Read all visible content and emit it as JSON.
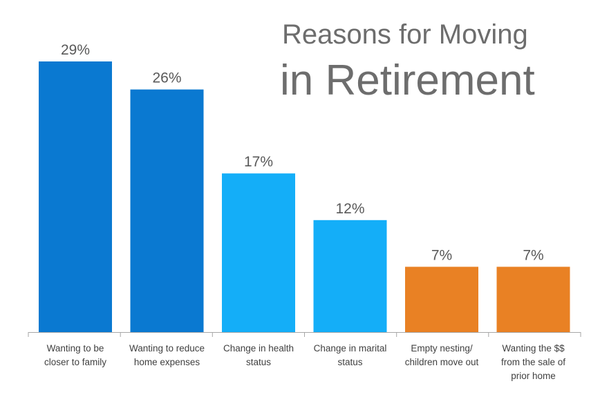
{
  "chart_data": {
    "type": "bar",
    "title_line1": "Reasons for Moving",
    "title_line2": "in Retirement",
    "categories": [
      [
        "Wanting to be",
        "closer to family"
      ],
      [
        "Wanting to reduce",
        "home expenses"
      ],
      [
        "Change in health",
        "status"
      ],
      [
        "Change in marital",
        "status"
      ],
      [
        "Empty nesting/",
        "children move out"
      ],
      [
        "Wanting the $$",
        "from the sale of",
        "prior home"
      ]
    ],
    "values": [
      29,
      26,
      17,
      12,
      7,
      7
    ],
    "value_labels": [
      "29%",
      "26%",
      "17%",
      "12%",
      "7%",
      "7%"
    ],
    "bar_colors": [
      "#0a79d1",
      "#0a79d1",
      "#14aef8",
      "#14aef8",
      "#e98124",
      "#e98124"
    ],
    "axis_color": "#a6a6a6",
    "ylim": [
      0,
      29
    ],
    "grid": false,
    "legend": "none"
  }
}
